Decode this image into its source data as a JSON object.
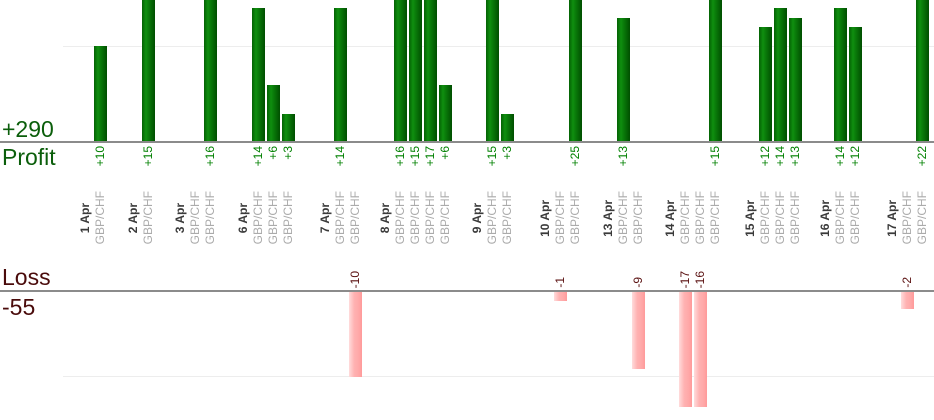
{
  "chart_data": {
    "type": "bar",
    "title": "",
    "currency_label": "GBP/CHF",
    "profit": {
      "total": 290,
      "total_label": "+290",
      "axis_label": "Profit"
    },
    "loss": {
      "total": -55,
      "total_label": "-55",
      "axis_label": "Loss"
    },
    "gridline_values": {
      "profit": 10,
      "loss": -10
    },
    "groups": [
      {
        "date": "1 Apr",
        "trades": [
          10
        ]
      },
      {
        "date": "2 Apr",
        "trades": [
          15
        ]
      },
      {
        "date": "3 Apr",
        "trades": [
          0,
          16
        ]
      },
      {
        "date": "6 Apr",
        "trades": [
          14,
          6,
          3
        ]
      },
      {
        "date": "7 Apr",
        "trades": [
          14,
          -10
        ]
      },
      {
        "date": "8 Apr",
        "trades": [
          16,
          15,
          17,
          6
        ]
      },
      {
        "date": "9 Apr",
        "trades": [
          15,
          3
        ]
      },
      {
        "date": "10 Apr",
        "trades": [
          -1,
          25
        ]
      },
      {
        "date": "13 Apr",
        "trades": [
          13,
          -9
        ]
      },
      {
        "date": "14 Apr",
        "trades": [
          -17,
          -16,
          15
        ]
      },
      {
        "date": "15 Apr",
        "trades": [
          12,
          14,
          13
        ]
      },
      {
        "date": "16 Apr",
        "trades": [
          14,
          12
        ]
      },
      {
        "date": "17 Apr",
        "trades": [
          -2,
          22
        ]
      }
    ],
    "colors": {
      "profit_bar": "#0a7c0a",
      "loss_bar": "#ffacac",
      "profit_total_text": "#0b5e0b",
      "loss_total_text": "#4a0b0b",
      "profit_value_text": "#008000",
      "loss_value_text": "#5a1010",
      "date_text": "#3a3a3a",
      "currency_text": "#ababab",
      "axis_line": "#8b8b8b",
      "gridline": "#ededed"
    }
  }
}
